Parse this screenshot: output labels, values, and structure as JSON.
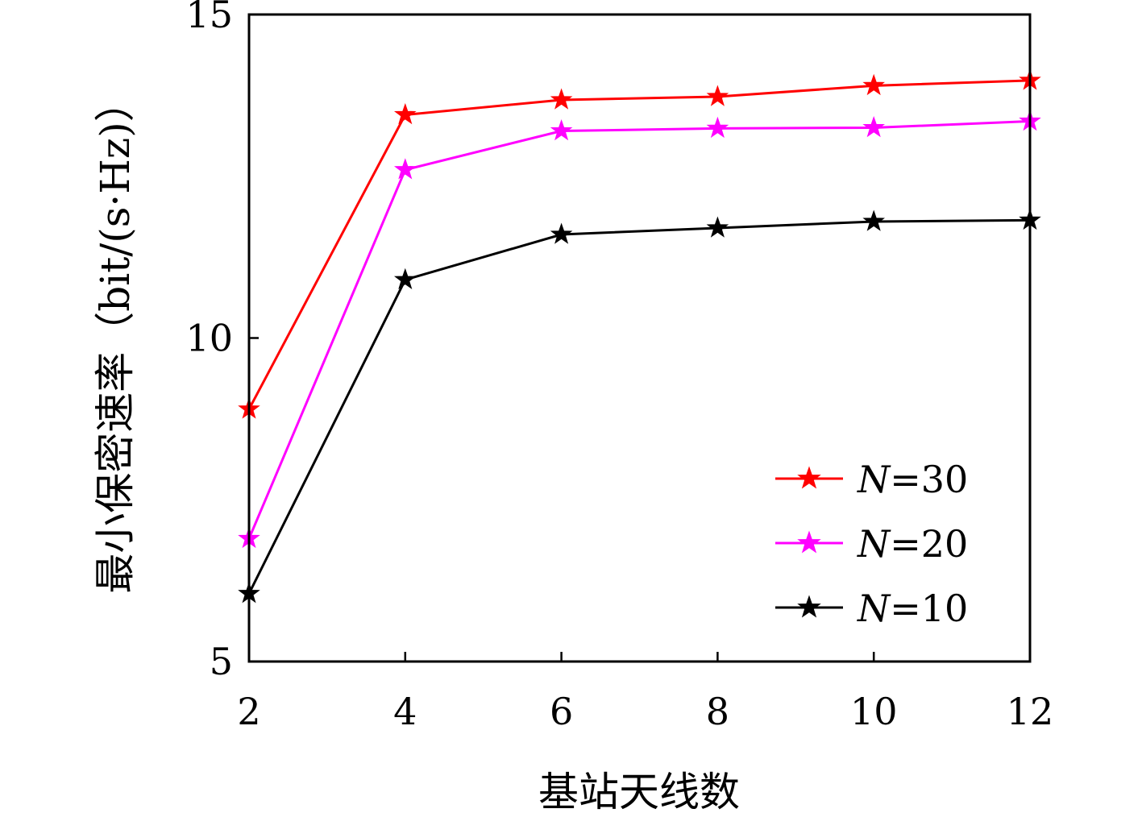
{
  "chart_data": {
    "type": "line",
    "xlabel": "基站天线数",
    "ylabel": "最小保密速率（bit/(s·Hz)）",
    "x": [
      2,
      4,
      6,
      8,
      10,
      12
    ],
    "xlim": [
      2,
      12
    ],
    "ylim": [
      5,
      15
    ],
    "xticks": [
      "2",
      "4",
      "6",
      "8",
      "10",
      "12"
    ],
    "yticks": [
      "5",
      "10",
      "15"
    ],
    "grid": false,
    "legend_position": "bottom-right",
    "series": [
      {
        "name": "N=30",
        "name_italic": "N",
        "name_rest": "=30",
        "color": "#ff0000",
        "marker": "star",
        "values": [
          8.9,
          13.45,
          13.68,
          13.73,
          13.9,
          13.98
        ]
      },
      {
        "name": "N=20",
        "name_italic": "N",
        "name_rest": "=20",
        "color": "#ff00ff",
        "marker": "star",
        "values": [
          6.9,
          12.6,
          13.2,
          13.24,
          13.25,
          13.35
        ]
      },
      {
        "name": "N=10",
        "name_italic": "N",
        "name_rest": "=10",
        "color": "#000000",
        "marker": "star",
        "values": [
          6.05,
          10.9,
          11.6,
          11.7,
          11.8,
          11.82
        ]
      }
    ]
  }
}
